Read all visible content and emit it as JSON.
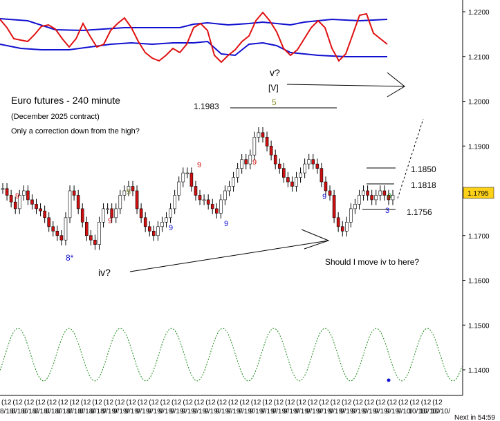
{
  "chart_data": {
    "type": "candlestick",
    "title": "Euro futures - 240 minute",
    "subtitle": "(December 2025 contract)",
    "comment": "Only a correction down from the high?",
    "y_axis": {
      "ticks": [
        "1.2200",
        "1.2100",
        "1.2000",
        "1.1900",
        "1.1800",
        "1.1700",
        "1.1600",
        "1.1500",
        "1.1400"
      ],
      "tick_values": [
        1.22,
        1.21,
        1.2,
        1.19,
        1.18,
        1.17,
        1.16,
        1.15,
        1.14
      ],
      "current_price": "1.1795"
    },
    "x_axis": {
      "ticks": [
        "(12",
        "(12",
        "(12",
        "(12",
        "(12",
        "(12",
        "(12",
        "(12",
        "(12",
        "(12",
        "(12",
        "(12",
        "(12",
        "(12",
        "(12",
        "(12",
        "(12",
        "(12",
        "(12",
        "(12",
        "(12",
        "(12",
        "(12",
        "(12",
        "(12",
        "(12",
        "(12",
        "(12",
        "(12",
        "(12",
        "(12",
        "(12",
        "(12",
        "(12",
        "(12",
        "(12",
        "(12",
        "(12",
        "(12",
        "(12",
        "(12",
        "(12",
        "(12",
        "(12",
        "(12",
        "(12",
        "(12",
        "(12",
        "(12",
        "(12"
      ],
      "dates": [
        "8/18/",
        "8/18/",
        "8/18/",
        "8/18/",
        "8/18/",
        "8/18/",
        "8/18/",
        "8/18/",
        "8/18/",
        "9/19/",
        "9/19/",
        "9/19/",
        "9/19/",
        "9/19/",
        "9/19/",
        "9/19/",
        "9/19/",
        "9/19/",
        "9/19/",
        "9/19/",
        "9/19/",
        "9/19/",
        "9/19/",
        "9/19/",
        "9/19/",
        "9/19/",
        "9/19/",
        "9/19/",
        "9/19/",
        "9/19/",
        "9/19/",
        "9/19/",
        "9/19/",
        "9/19/",
        "9/19/",
        "9/10/",
        "10/10/",
        "10/10/",
        "10/10/"
      ],
      "countdown": "Next in 54:59"
    },
    "levels": [
      {
        "label": "1.1983",
        "value": 1.1983
      },
      {
        "label": "1.1850",
        "value": 1.185
      },
      {
        "label": "1.1818",
        "value": 1.1818
      },
      {
        "label": "1.1756",
        "value": 1.1756
      }
    ],
    "wave_labels": [
      "v?",
      "[V]",
      "5",
      "iv?",
      "8*",
      "Should I move iv to here?"
    ],
    "count_labels": [
      "9",
      "9",
      "9",
      "9",
      "9",
      "9",
      "9",
      "9",
      "9",
      "3",
      "0",
      "5"
    ],
    "close_series": [
      1.1805,
      1.179,
      1.1775,
      1.176,
      1.179,
      1.18,
      1.178,
      1.177,
      1.176,
      1.1755,
      1.174,
      1.172,
      1.171,
      1.17,
      1.169,
      1.174,
      1.18,
      1.179,
      1.176,
      1.173,
      1.17,
      1.169,
      1.168,
      1.173,
      1.176,
      1.176,
      1.174,
      1.176,
      1.179,
      1.18,
      1.181,
      1.18,
      1.176,
      1.174,
      1.172,
      1.171,
      1.17,
      1.172,
      1.173,
      1.174,
      1.176,
      1.179,
      1.182,
      1.184,
      1.184,
      1.181,
      1.179,
      1.178,
      1.178,
      1.177,
      1.176,
      1.175,
      1.178,
      1.18,
      1.181,
      1.183,
      1.185,
      1.187,
      1.186,
      1.188,
      1.192,
      1.193,
      1.192,
      1.19,
      1.188,
      1.186,
      1.185,
      1.183,
      1.182,
      1.181,
      1.183,
      1.184,
      1.186,
      1.187,
      1.186,
      1.185,
      1.182,
      1.18,
      1.179,
      1.174,
      1.172,
      1.171,
      1.173,
      1.176,
      1.177,
      1.179,
      1.18,
      1.179,
      1.178,
      1.179,
      1.18,
      1.179,
      1.178,
      1.179
    ],
    "y_range": [
      1.1355,
      1.2235
    ]
  }
}
